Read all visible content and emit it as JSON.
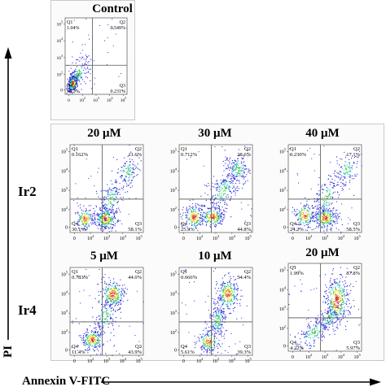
{
  "axis": {
    "y_label": "PI",
    "x_label": "Annexin V-FITC"
  },
  "rows": {
    "ir2": "Ir2",
    "ir4": "Ir4"
  },
  "tick_labels": {
    "x": [
      "0",
      "10^2",
      "10^3",
      "10^4",
      "10^5"
    ],
    "y": [
      "10^5",
      "10^4",
      "10^3",
      "10^2",
      "0"
    ]
  },
  "quadrant_names": [
    "Q1",
    "Q2",
    "Q3",
    "Q4"
  ],
  "plots": [
    {
      "id": "control",
      "title": "Control",
      "q1": "1.04%",
      "q2": "0.549%",
      "q3": "0.231%",
      "q4": "98.2%",
      "pattern": "control"
    },
    {
      "id": "ir2-20",
      "title": "20 μM",
      "q1": "0.162%",
      "q2": "11.6%",
      "q3": "58.1%",
      "q4": "30.1%",
      "pattern": "ir2a"
    },
    {
      "id": "ir2-30",
      "title": "30 μM",
      "q1": "0.712%",
      "q2": "28.6%",
      "q3": "44.8%",
      "q4": "25.9%",
      "pattern": "ir2b"
    },
    {
      "id": "ir2-40",
      "title": "40 μM",
      "q1": "0.230%",
      "q2": "17.1%",
      "q3": "58.5%",
      "q4": "24.2%",
      "pattern": "ir2c"
    },
    {
      "id": "ir4-5",
      "title": "5 μM",
      "q1": "0.783%",
      "q2": "44.0%",
      "q3": "43.9%",
      "q4": "11.4%",
      "pattern": "ir4a"
    },
    {
      "id": "ir4-10",
      "title": "10 μM",
      "q1": "0.666%",
      "q2": "54.4%",
      "q3": "39.3%",
      "q4": "5.61%",
      "pattern": "ir4b"
    },
    {
      "id": "ir4-20",
      "title": "20 μM",
      "q1": "1.99%",
      "q2": "87.8%",
      "q3": "5.97%",
      "q4": "4.22%",
      "pattern": "ir4c"
    }
  ],
  "colors": {
    "dot": "#2b2bd6",
    "cyan": "#28c9c9",
    "green": "#38c238",
    "yellow": "#e8e83a",
    "orange": "#f08a24",
    "red": "#d8231e",
    "line": "#555555",
    "frame": "#c9c9c9"
  }
}
